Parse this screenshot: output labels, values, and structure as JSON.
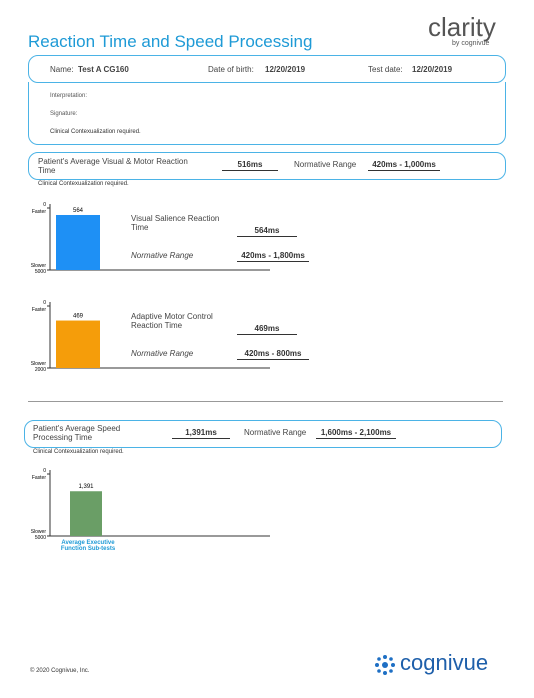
{
  "header": {
    "title": "Reaction Time and Speed Processing",
    "logo": "clarity",
    "logo_sub": "by cognivue"
  },
  "patient": {
    "name_label": "Name:",
    "name": "Test A CG160",
    "dob_label": "Date of birth:",
    "dob": "12/20/2019",
    "test_date_label": "Test date:",
    "test_date": "12/20/2019"
  },
  "notes": {
    "interpretation": "Interpretation:",
    "signature": "Signature:",
    "note": "Clinical Contexualization required."
  },
  "summary_reaction": {
    "label": "Patient's Average Visual & Motor Reaction Time",
    "value": "516ms",
    "range_label": "Normative Range",
    "range": "420ms - 1,000ms",
    "note": "Clinical Contexualization required."
  },
  "summary_speed": {
    "label": "Patient's Average Speed Processing Time",
    "value": "1,391ms",
    "range_label": "Normative Range",
    "range": "1,600ms - 2,100ms",
    "note": "Clinical Contexualization required."
  },
  "charts": [
    {
      "type": "bar",
      "values": [
        564
      ],
      "color": "#1e90f5",
      "ylim": [
        0,
        5000
      ],
      "yticks": [
        0,
        5000
      ],
      "top_label": "Faster",
      "bottom_label": "Slower",
      "metric": "Visual Salience Reaction Time",
      "metric_value": "564ms",
      "range_label": "Normative Range",
      "range": "420ms - 1,800ms"
    },
    {
      "type": "bar",
      "values": [
        469
      ],
      "color": "#f59d0a",
      "ylim": [
        0,
        2000
      ],
      "yticks": [
        0,
        2000
      ],
      "top_label": "Faster",
      "bottom_label": "Slower",
      "metric": "Adaptive Motor Control Reaction Time",
      "metric_value": "469ms",
      "range_label": "Normative Range",
      "range": "420ms - 800ms"
    },
    {
      "type": "bar",
      "values": [
        1391
      ],
      "value_labels": [
        "1,391"
      ],
      "color": "#6a9e66",
      "ylim": [
        0,
        5000
      ],
      "yticks": [
        0,
        5000
      ],
      "top_label": "Faster",
      "bottom_label": "Slower",
      "categories": [
        "Average Executive Function Sub-tests"
      ]
    }
  ],
  "footer": {
    "copyright": "© 2020 Cognivue, Inc.",
    "logo": "cognivue"
  }
}
